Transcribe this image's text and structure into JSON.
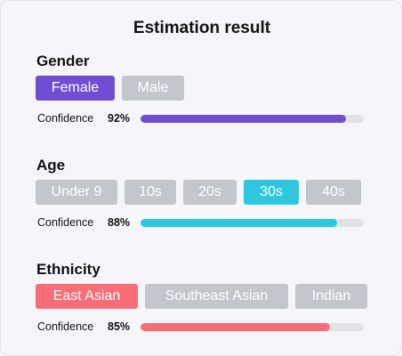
{
  "title": "Estimation result",
  "gender": {
    "heading": "Gender",
    "options": [
      "Female",
      "Male"
    ],
    "selected_index": 0,
    "confidence_label": "Confidence",
    "confidence_text": "92%",
    "confidence": 0.92,
    "color": "#6f4ed4"
  },
  "age": {
    "heading": "Age",
    "options": [
      "Under 9",
      "10s",
      "20s",
      "30s",
      "40s"
    ],
    "selected_index": 3,
    "confidence_label": "Confidence",
    "confidence_text": "88%",
    "confidence": 0.88,
    "color": "#2ec7dd"
  },
  "ethnicity": {
    "heading": "Ethnicity",
    "options": [
      "East Asian",
      "Southeast Asian",
      "Indian"
    ],
    "selected_index": 0,
    "confidence_label": "Confidence",
    "confidence_text": "85%",
    "confidence": 0.85,
    "color": "#f76e78"
  },
  "colors": {
    "unselected_chip": "#c4c6cd",
    "track": "#e2e3e8"
  }
}
